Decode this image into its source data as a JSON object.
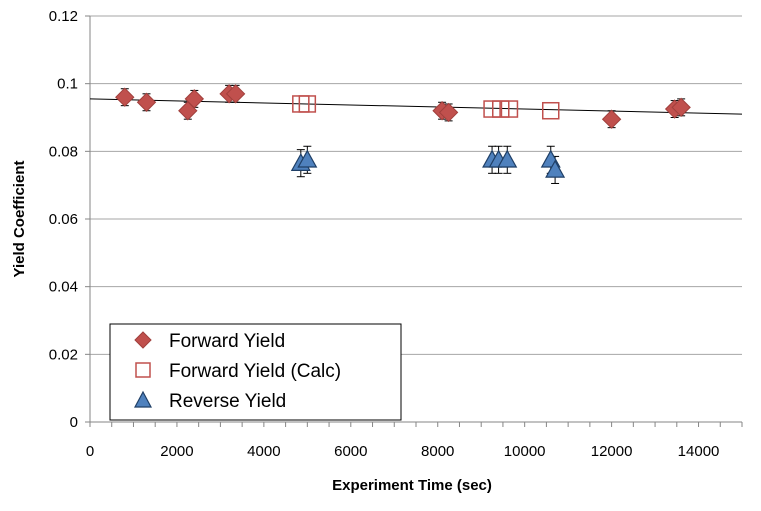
{
  "chart_data": {
    "type": "scatter",
    "title": "",
    "xlabel": "Experiment Time (sec)",
    "ylabel": "Yield Coefficient",
    "xlim": [
      0,
      15000
    ],
    "ylim": [
      0,
      0.12
    ],
    "x_ticks": [
      0,
      2000,
      4000,
      6000,
      8000,
      10000,
      12000,
      14000
    ],
    "x_tick_labels": [
      "0",
      "2000",
      "4000",
      "6000",
      "8000",
      "10000",
      "12000",
      "14000"
    ],
    "x_minor_step": 500,
    "y_ticks": [
      0,
      0.02,
      0.04,
      0.06,
      0.08,
      0.1,
      0.12
    ],
    "y_tick_labels": [
      "0",
      "0.02",
      "0.04",
      "0.06",
      "0.08",
      "0.1",
      "0.12"
    ],
    "grid": "horizontal",
    "legend_position": "bottom-left",
    "colors": {
      "forward": "#C0504D",
      "forward_edge": "#A03F3C",
      "forward_calc": "#C0504D",
      "reverse": "#4F81BD",
      "reverse_edge": "#1F3F66",
      "trendline": "#000000",
      "grid": "#A6A6A6"
    },
    "series": [
      {
        "name": "Forward Yield",
        "marker": "diamond",
        "points": [
          {
            "x": 800,
            "y": 0.096,
            "err": 0.0025
          },
          {
            "x": 1300,
            "y": 0.0945,
            "err": 0.0025
          },
          {
            "x": 2250,
            "y": 0.092,
            "err": 0.0025
          },
          {
            "x": 2400,
            "y": 0.0955,
            "err": 0.0025
          },
          {
            "x": 3200,
            "y": 0.097,
            "err": 0.0025
          },
          {
            "x": 3350,
            "y": 0.097,
            "err": 0.0025
          },
          {
            "x": 8100,
            "y": 0.092,
            "err": 0.0025
          },
          {
            "x": 8250,
            "y": 0.0915,
            "err": 0.0025
          },
          {
            "x": 12000,
            "y": 0.0895,
            "err": 0.0025
          },
          {
            "x": 13450,
            "y": 0.0925,
            "err": 0.0025
          },
          {
            "x": 13600,
            "y": 0.093,
            "err": 0.0025
          }
        ]
      },
      {
        "name": "Forward Yield (Calc)",
        "marker": "square-open",
        "points": [
          {
            "x": 4850,
            "y": 0.094
          },
          {
            "x": 5000,
            "y": 0.094
          },
          {
            "x": 9250,
            "y": 0.0925
          },
          {
            "x": 9450,
            "y": 0.0925
          },
          {
            "x": 9650,
            "y": 0.0925
          },
          {
            "x": 10600,
            "y": 0.092
          }
        ]
      },
      {
        "name": "Reverse Yield",
        "marker": "triangle",
        "points": [
          {
            "x": 4850,
            "y": 0.0765,
            "err": 0.004
          },
          {
            "x": 5000,
            "y": 0.0775,
            "err": 0.004
          },
          {
            "x": 9250,
            "y": 0.0775,
            "err": 0.004
          },
          {
            "x": 9400,
            "y": 0.0775,
            "err": 0.004
          },
          {
            "x": 9600,
            "y": 0.0775,
            "err": 0.004
          },
          {
            "x": 10600,
            "y": 0.0775,
            "err": 0.004
          },
          {
            "x": 10700,
            "y": 0.0745,
            "err": 0.004
          }
        ]
      }
    ],
    "trendline": {
      "x_start": 0,
      "y_start": 0.0955,
      "x_end": 15000,
      "y_end": 0.091
    }
  }
}
